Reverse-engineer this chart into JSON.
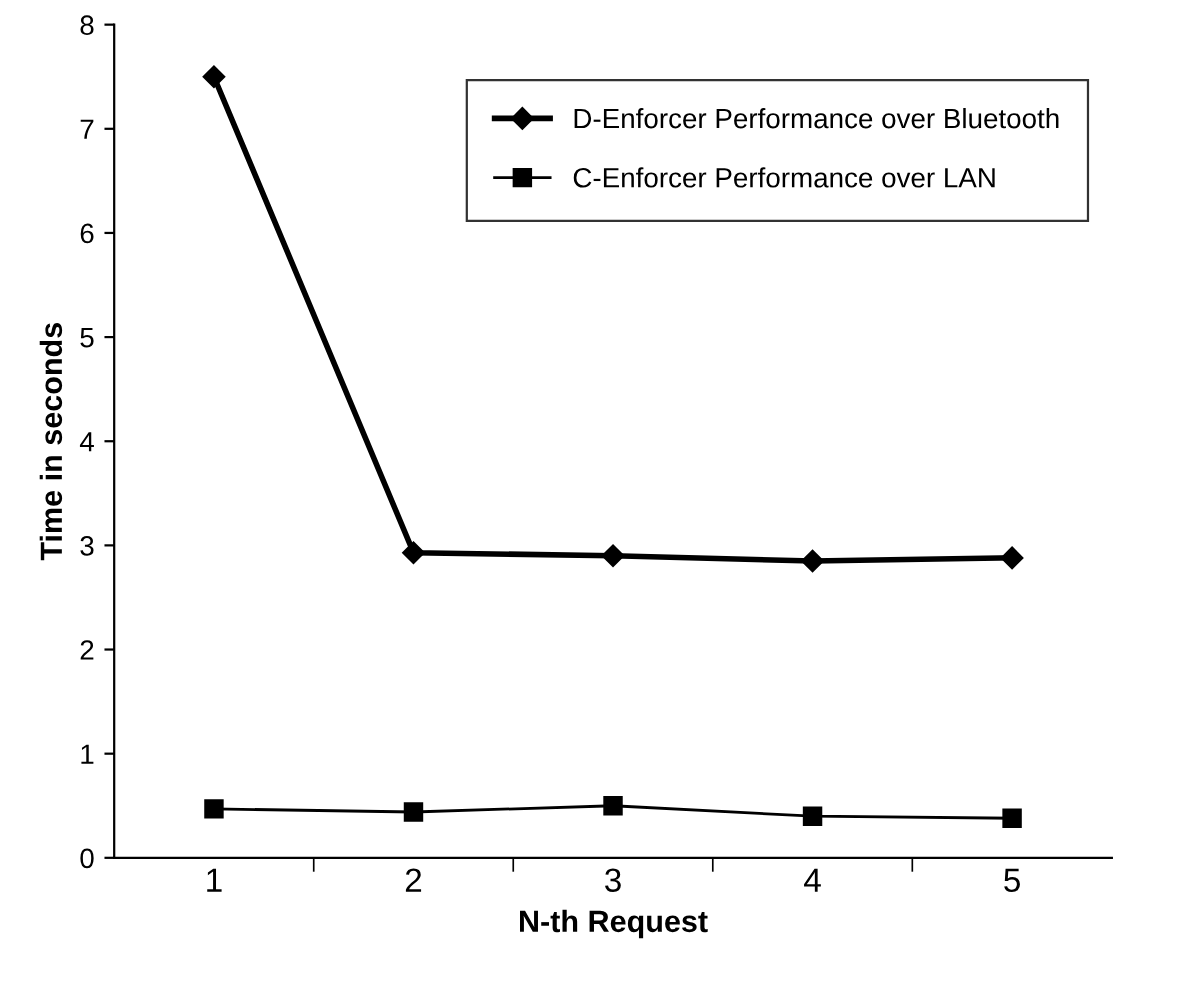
{
  "chart_data": {
    "type": "line",
    "xlabel": "N-th Request",
    "ylabel": "Time in seconds",
    "categories": [
      "1",
      "2",
      "3",
      "4",
      "5"
    ],
    "series": [
      {
        "name": "D-Enforcer Performance over Bluetooth",
        "color": "#000000",
        "marker": "diamond",
        "values": [
          7.5,
          2.93,
          2.9,
          2.85,
          2.88
        ]
      },
      {
        "name": "C-Enforcer Performance over LAN",
        "color": "#000000",
        "marker": "square",
        "values": [
          0.47,
          0.44,
          0.5,
          0.4,
          0.38
        ]
      }
    ],
    "ylim": [
      0,
      8
    ],
    "yticks": [
      0,
      1,
      2,
      3,
      4,
      5,
      6,
      7,
      8
    ],
    "grid": false,
    "legend": "top right",
    "line_style": "solid"
  }
}
